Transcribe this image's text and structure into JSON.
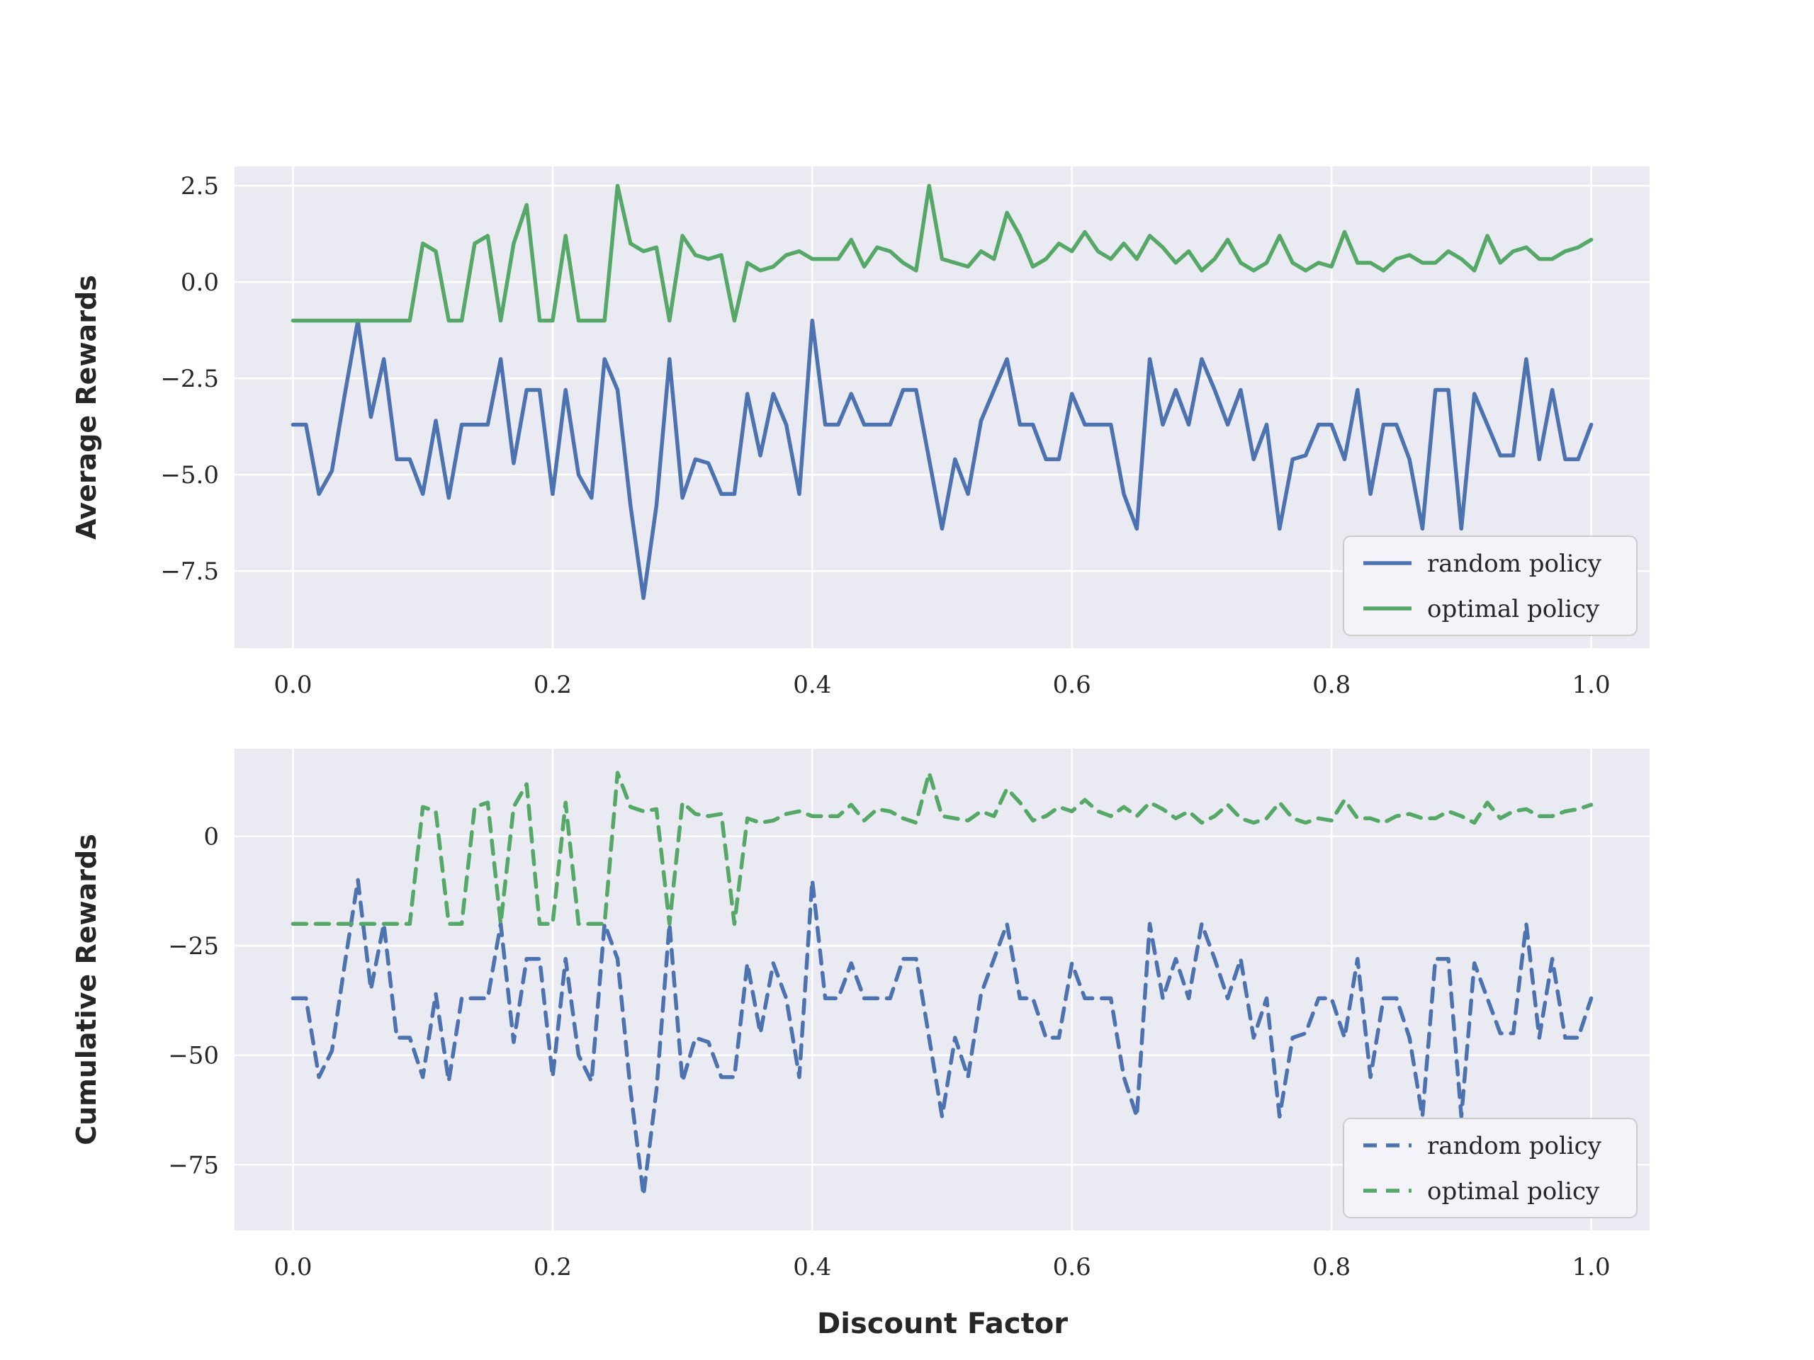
{
  "figure": {
    "background": "#ffffff",
    "axes_background": "#eaeaf2",
    "grid_color": "#ffffff",
    "text_color": "#262626",
    "random_policy_color": "#4c72b0",
    "optimal_policy_color": "#55a868"
  },
  "chart_data": [
    {
      "type": "line",
      "title": "",
      "xlabel": "",
      "ylabel": "Average Rewards",
      "grid": true,
      "xlim": [
        -0.045,
        1.045
      ],
      "ylim": [
        -9.5,
        3.0
      ],
      "xticks": {
        "values": [
          0.0,
          0.2,
          0.4,
          0.6,
          0.8,
          1.0
        ],
        "labels": [
          "0.0",
          "0.2",
          "0.4",
          "0.6",
          "0.8",
          "1.0"
        ]
      },
      "yticks": {
        "values": [
          2.5,
          0.0,
          -2.5,
          -5.0,
          -7.5
        ],
        "labels": [
          "2.5",
          "0.0",
          "−2.5",
          "−5.0",
          "−7.5"
        ]
      },
      "legend": {
        "position": "lower right",
        "entries": [
          "random policy",
          "optimal policy"
        ]
      },
      "x": [
        0.0,
        0.01,
        0.02,
        0.03,
        0.04,
        0.05,
        0.06,
        0.07,
        0.08,
        0.09,
        0.1,
        0.11,
        0.12,
        0.13,
        0.14,
        0.15,
        0.16,
        0.17,
        0.18,
        0.19,
        0.2,
        0.21,
        0.22,
        0.23,
        0.24,
        0.25,
        0.26,
        0.27,
        0.28,
        0.29,
        0.3,
        0.31,
        0.32,
        0.33,
        0.34,
        0.35,
        0.36,
        0.37,
        0.38,
        0.39,
        0.4,
        0.41,
        0.42,
        0.43,
        0.44,
        0.45,
        0.46,
        0.47,
        0.48,
        0.49,
        0.5,
        0.51,
        0.52,
        0.53,
        0.54,
        0.55,
        0.56,
        0.57,
        0.58,
        0.59,
        0.6,
        0.61,
        0.62,
        0.63,
        0.64,
        0.65,
        0.66,
        0.67,
        0.68,
        0.69,
        0.7,
        0.71,
        0.72,
        0.73,
        0.74,
        0.75,
        0.76,
        0.77,
        0.78,
        0.79,
        0.8,
        0.81,
        0.82,
        0.83,
        0.84,
        0.85,
        0.86,
        0.87,
        0.88,
        0.89,
        0.9,
        0.91,
        0.92,
        0.93,
        0.94,
        0.95,
        0.96,
        0.97,
        0.98,
        0.99,
        1.0
      ],
      "series": [
        {
          "name": "random policy",
          "color": "#4c72b0",
          "dash": false,
          "values": [
            -3.7,
            -3.7,
            -5.5,
            -4.9,
            -2.9,
            -1.0,
            -3.5,
            -2.0,
            -4.6,
            -4.6,
            -5.5,
            -3.6,
            -5.6,
            -3.7,
            -3.7,
            -3.7,
            -2.0,
            -4.7,
            -2.8,
            -2.8,
            -5.5,
            -2.8,
            -5.0,
            -5.6,
            -2.0,
            -2.8,
            -5.8,
            -8.2,
            -5.8,
            -2.0,
            -5.6,
            -4.6,
            -4.7,
            -5.5,
            -5.5,
            -2.9,
            -4.5,
            -2.9,
            -3.7,
            -5.5,
            -1.0,
            -3.7,
            -3.7,
            -2.9,
            -3.7,
            -3.7,
            -3.7,
            -2.8,
            -2.8,
            -4.6,
            -6.4,
            -4.6,
            -5.5,
            -3.6,
            -2.8,
            -2.0,
            -3.7,
            -3.7,
            -4.6,
            -4.6,
            -2.9,
            -3.7,
            -3.7,
            -3.7,
            -5.5,
            -6.4,
            -2.0,
            -3.7,
            -2.8,
            -3.7,
            -2.0,
            -2.8,
            -3.7,
            -2.8,
            -4.6,
            -3.7,
            -6.4,
            -4.6,
            -4.5,
            -3.7,
            -3.7,
            -4.6,
            -2.8,
            -5.5,
            -3.7,
            -3.7,
            -4.6,
            -6.4,
            -2.8,
            -2.8,
            -6.4,
            -2.9,
            -3.7,
            -4.5,
            -4.5,
            -2.0,
            -4.6,
            -2.8,
            -4.6,
            -4.6,
            -3.7
          ]
        },
        {
          "name": "optimal policy",
          "color": "#55a868",
          "dash": false,
          "values": [
            -1,
            -1,
            -1,
            -1,
            -1,
            -1,
            -1,
            -1,
            -1,
            -1,
            1.0,
            0.8,
            -1,
            -1,
            1.0,
            1.2,
            -1,
            1.0,
            2.0,
            -1,
            -1,
            1.2,
            -1,
            -1,
            -1,
            2.5,
            1.0,
            0.8,
            0.9,
            -1,
            1.2,
            0.7,
            0.6,
            0.7,
            -1,
            0.5,
            0.3,
            0.4,
            0.7,
            0.8,
            0.6,
            0.6,
            0.6,
            1.1,
            0.4,
            0.9,
            0.8,
            0.5,
            0.3,
            2.5,
            0.6,
            0.5,
            0.4,
            0.8,
            0.6,
            1.8,
            1.2,
            0.4,
            0.6,
            1.0,
            0.8,
            1.3,
            0.8,
            0.6,
            1.0,
            0.6,
            1.2,
            0.9,
            0.5,
            0.8,
            0.3,
            0.6,
            1.1,
            0.5,
            0.3,
            0.5,
            1.2,
            0.5,
            0.3,
            0.5,
            0.4,
            1.3,
            0.5,
            0.5,
            0.3,
            0.6,
            0.7,
            0.5,
            0.5,
            0.8,
            0.6,
            0.3,
            1.2,
            0.5,
            0.8,
            0.9,
            0.6,
            0.6,
            0.8,
            0.9,
            1.1
          ]
        }
      ]
    },
    {
      "type": "line",
      "title": "",
      "xlabel": "Discount Factor",
      "ylabel": "Cumulative Rewards",
      "grid": true,
      "xlim": [
        -0.045,
        1.045
      ],
      "ylim": [
        -90,
        20
      ],
      "xticks": {
        "values": [
          0.0,
          0.2,
          0.4,
          0.6,
          0.8,
          1.0
        ],
        "labels": [
          "0.0",
          "0.2",
          "0.4",
          "0.6",
          "0.8",
          "1.0"
        ]
      },
      "yticks": {
        "values": [
          0,
          -25,
          -50,
          -75
        ],
        "labels": [
          "0",
          "−25",
          "−50",
          "−75"
        ]
      },
      "legend": {
        "position": "lower right",
        "entries": [
          "random policy",
          "optimal policy"
        ]
      },
      "x": [
        0.0,
        0.01,
        0.02,
        0.03,
        0.04,
        0.05,
        0.06,
        0.07,
        0.08,
        0.09,
        0.1,
        0.11,
        0.12,
        0.13,
        0.14,
        0.15,
        0.16,
        0.17,
        0.18,
        0.19,
        0.2,
        0.21,
        0.22,
        0.23,
        0.24,
        0.25,
        0.26,
        0.27,
        0.28,
        0.29,
        0.3,
        0.31,
        0.32,
        0.33,
        0.34,
        0.35,
        0.36,
        0.37,
        0.38,
        0.39,
        0.4,
        0.41,
        0.42,
        0.43,
        0.44,
        0.45,
        0.46,
        0.47,
        0.48,
        0.49,
        0.5,
        0.51,
        0.52,
        0.53,
        0.54,
        0.55,
        0.56,
        0.57,
        0.58,
        0.59,
        0.6,
        0.61,
        0.62,
        0.63,
        0.64,
        0.65,
        0.66,
        0.67,
        0.68,
        0.69,
        0.7,
        0.71,
        0.72,
        0.73,
        0.74,
        0.75,
        0.76,
        0.77,
        0.78,
        0.79,
        0.8,
        0.81,
        0.82,
        0.83,
        0.84,
        0.85,
        0.86,
        0.87,
        0.88,
        0.89,
        0.9,
        0.91,
        0.92,
        0.93,
        0.94,
        0.95,
        0.96,
        0.97,
        0.98,
        0.99,
        1.0
      ],
      "series": [
        {
          "name": "random policy",
          "color": "#4c72b0",
          "dash": true,
          "values": [
            -37,
            -37,
            -55,
            -49,
            -29,
            -10,
            -35,
            -20,
            -46,
            -46,
            -55,
            -36,
            -56,
            -37,
            -37,
            -37,
            -20,
            -47,
            -28,
            -28,
            -55,
            -28,
            -50,
            -56,
            -20,
            -28,
            -58,
            -82,
            -58,
            -20,
            -56,
            -46,
            -47,
            -55,
            -55,
            -29,
            -45,
            -29,
            -37,
            -55,
            -10,
            -37,
            -37,
            -29,
            -37,
            -37,
            -37,
            -28,
            -28,
            -46,
            -64,
            -46,
            -55,
            -36,
            -28,
            -20,
            -37,
            -37,
            -46,
            -46,
            -29,
            -37,
            -37,
            -37,
            -55,
            -64,
            -20,
            -37,
            -28,
            -37,
            -20,
            -28,
            -37,
            -28,
            -46,
            -37,
            -64,
            -46,
            -45,
            -37,
            -37,
            -46,
            -28,
            -55,
            -37,
            -37,
            -46,
            -64,
            -28,
            -28,
            -64,
            -29,
            -37,
            -45,
            -45,
            -20,
            -46,
            -28,
            -46,
            -46,
            -37
          ]
        },
        {
          "name": "optimal policy",
          "color": "#55a868",
          "dash": true,
          "values": [
            -20,
            -20,
            -20,
            -20,
            -20,
            -20,
            -20,
            -20,
            -20,
            -20,
            6.7,
            5.7,
            -20,
            -20,
            6.7,
            7.7,
            -20,
            6.7,
            11.9,
            -20,
            -20,
            7.7,
            -20,
            -20,
            -20,
            14.5,
            6.7,
            5.7,
            6.2,
            -20,
            7.7,
            5.1,
            4.6,
            5.1,
            -20,
            4.1,
            3.1,
            3.6,
            5.1,
            5.7,
            4.6,
            4.6,
            4.6,
            7.2,
            3.6,
            6.2,
            5.7,
            4.1,
            3.1,
            14.5,
            4.6,
            4.1,
            3.6,
            5.7,
            4.6,
            10.9,
            7.7,
            3.6,
            4.6,
            6.7,
            5.7,
            8.3,
            5.7,
            4.6,
            6.7,
            4.6,
            7.7,
            6.2,
            4.1,
            5.7,
            3.1,
            4.6,
            7.2,
            4.1,
            3.1,
            4.1,
            7.7,
            4.1,
            3.1,
            4.1,
            3.6,
            8.3,
            4.1,
            4.1,
            3.1,
            4.6,
            5.1,
            4.1,
            4.1,
            5.7,
            4.6,
            3.1,
            7.7,
            4.1,
            5.7,
            6.2,
            4.6,
            4.6,
            5.7,
            6.2,
            7.2
          ]
        }
      ]
    }
  ]
}
